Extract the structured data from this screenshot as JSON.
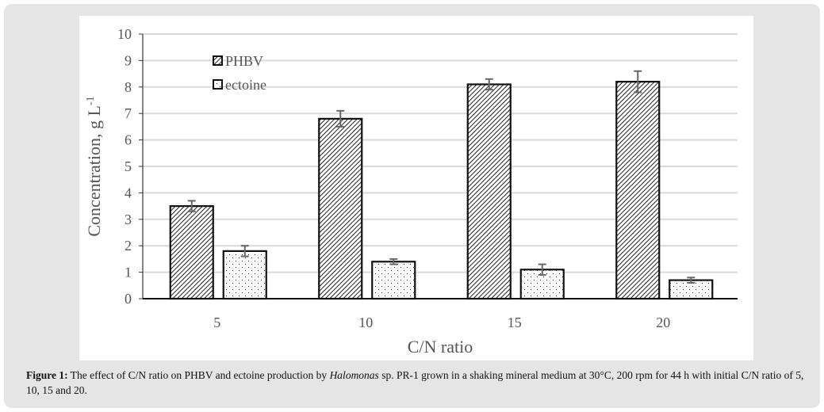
{
  "chart_data": {
    "type": "bar",
    "title": "",
    "xlabel": "C/N ratio",
    "ylabel": "Concentration, g L",
    "ylabel_superscript": "-1",
    "categories": [
      "5",
      "10",
      "15",
      "20"
    ],
    "ylim": [
      0,
      10
    ],
    "yticks": [
      "0",
      "1",
      "2",
      "3",
      "4",
      "5",
      "6",
      "7",
      "8",
      "9",
      "10"
    ],
    "grid": true,
    "legend_position": "top-left",
    "series": [
      {
        "name": "PHBV",
        "pattern": "diagonal-hatch",
        "values": [
          3.5,
          6.8,
          8.1,
          8.2
        ],
        "errors": [
          0.2,
          0.3,
          0.2,
          0.4
        ]
      },
      {
        "name": "ectoine",
        "pattern": "dots",
        "values": [
          1.8,
          1.4,
          1.1,
          0.7
        ],
        "errors": [
          0.2,
          0.1,
          0.2,
          0.1
        ]
      }
    ]
  },
  "caption": {
    "label": "Figure 1:",
    "text_before": " The effect of C/N ratio on PHBV and ectoine production by ",
    "italic": "Halomonas",
    "text_after": " sp. PR-1 grown in a shaking mineral medium at 30°C, 200 rpm for 44 h with initial C/N ratio of 5, 10, 15 and 20."
  }
}
